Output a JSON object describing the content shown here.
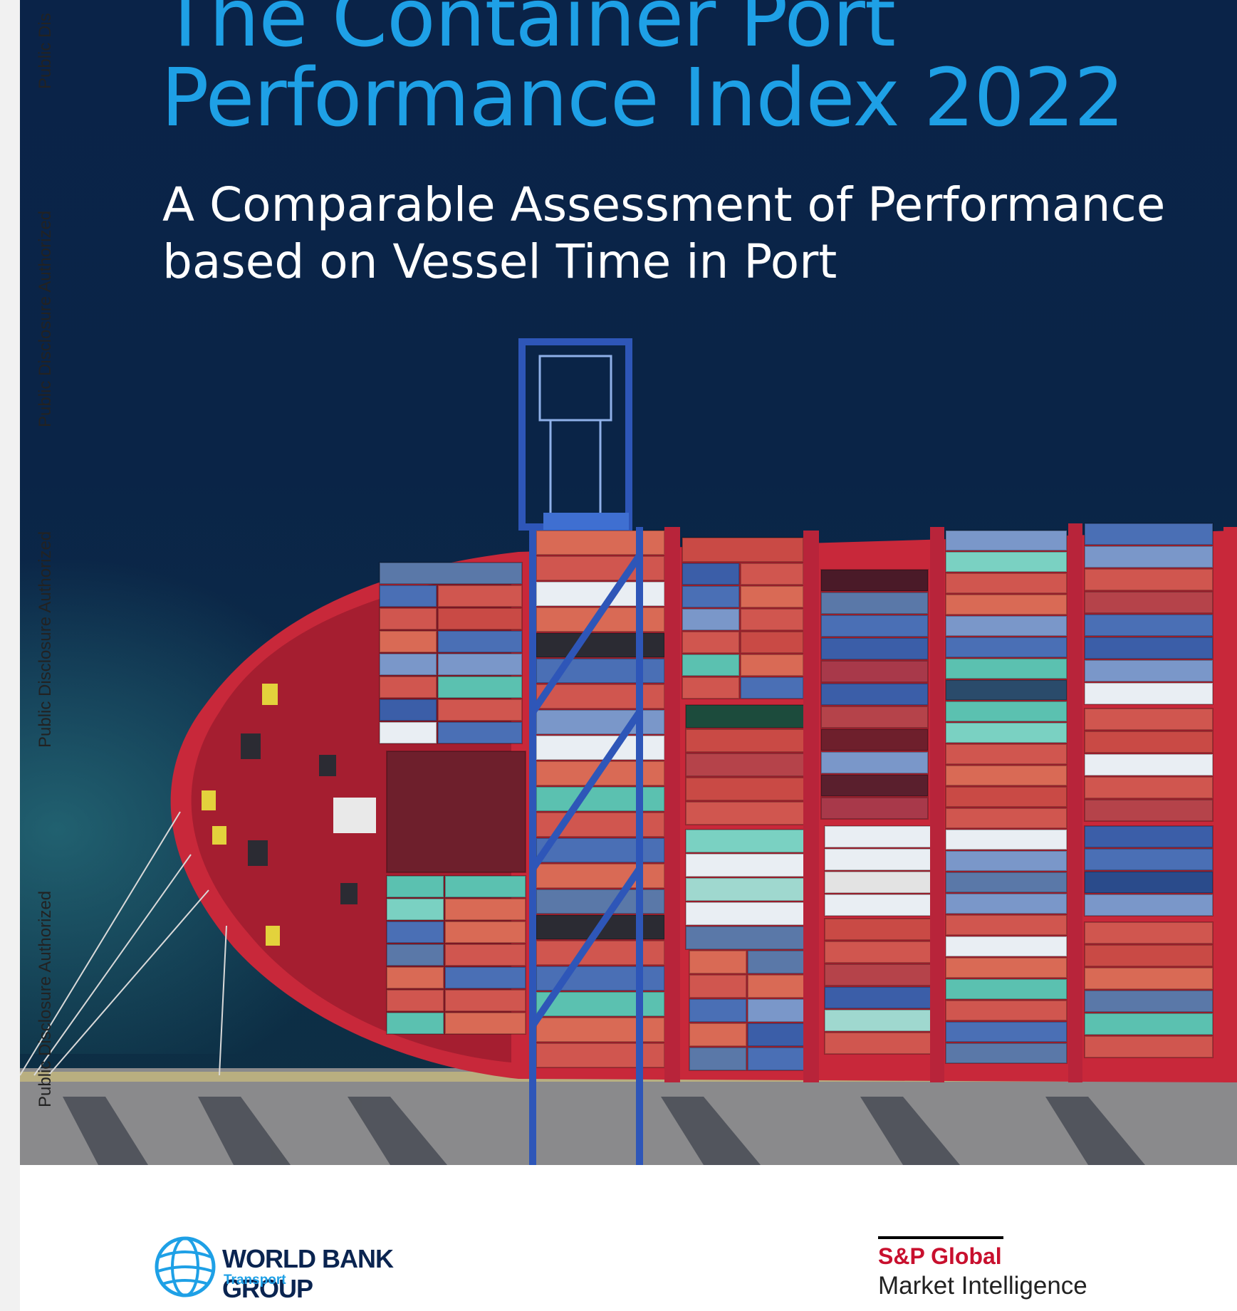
{
  "cover": {
    "title_line1": "The Container Port",
    "title_line2": "Performance Index 2022",
    "subtitle_line1": "A Comparable Assessment of Performance",
    "subtitle_line2": "based on Vessel Time in Port",
    "watermark_1": "Public Dis",
    "watermark_2": "Public Disclosure Authorized",
    "watermark_3": "Public Disclosure Authorized",
    "watermark_4": "Public Disclosure Authorized",
    "colors": {
      "title": "#1ea0e6",
      "sea": "#0a2348",
      "hull": "#c8283a"
    }
  },
  "logos": {
    "world_bank": {
      "name": "WORLD BANK GROUP",
      "sub": "Transport"
    },
    "sp_global": {
      "name": "S&P Global",
      "sub": "Market Intelligence"
    }
  }
}
